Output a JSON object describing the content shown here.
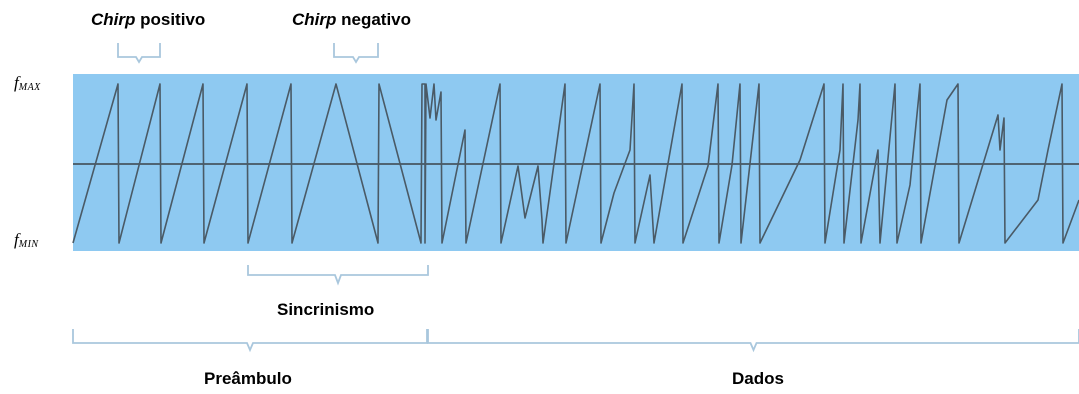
{
  "labels": {
    "chirp_positive_emph": "Chirp",
    "chirp_positive_rest": " positivo",
    "chirp_negative_emph": "Chirp",
    "chirp_negative_rest": " negativo",
    "sync": "Sincrinismo",
    "preamble": "Preâmbulo",
    "data": "Dados"
  },
  "axis": {
    "fmax_symbol": "f",
    "fmax_sub": "MAX",
    "fmin_symbol": "f",
    "fmin_sub": "MIN"
  },
  "colors": {
    "band": "#8ec9f1",
    "signal": "#4a5a66",
    "center_line": "#4f6473",
    "bracket": "#a9c7dd"
  }
}
